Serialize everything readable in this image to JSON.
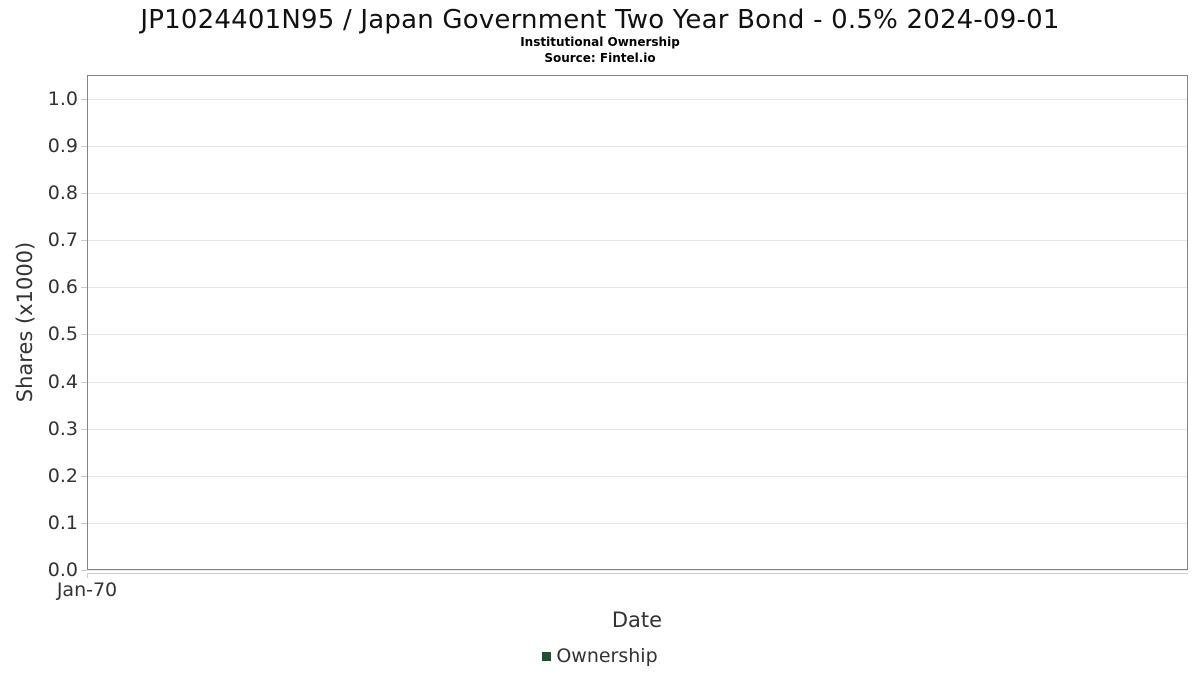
{
  "header": {
    "title": "JP1024401N95 / Japan Government Two Year Bond - 0.5% 2024-09-01",
    "subtitle": "Institutional Ownership",
    "source": "Source: Fintel.io"
  },
  "chart_data": {
    "type": "line",
    "title": "JP1024401N95 / Japan Government Two Year Bond - 0.5% 2024-09-01",
    "subtitle": "Institutional Ownership",
    "source_note": "Source: Fintel.io",
    "xlabel": "Date",
    "ylabel": "Shares (x1000)",
    "x_tick_labels": [
      "Jan-70"
    ],
    "y_tick_labels": [
      "0.0",
      "0.1",
      "0.2",
      "0.3",
      "0.4",
      "0.5",
      "0.6",
      "0.7",
      "0.8",
      "0.9",
      "1.0"
    ],
    "ylim": [
      0.0,
      1.05
    ],
    "grid": true,
    "legend_position": "bottom-center",
    "series": [
      {
        "name": "Ownership",
        "color": "#1e5132",
        "values": []
      }
    ]
  },
  "colors": {
    "legend_marker": "#1e5132",
    "axis_text": "#333333",
    "title_text": "#111111",
    "gridline": "#e7e7e7",
    "plot_border": "#858585",
    "axis_line": "#cccccc"
  }
}
